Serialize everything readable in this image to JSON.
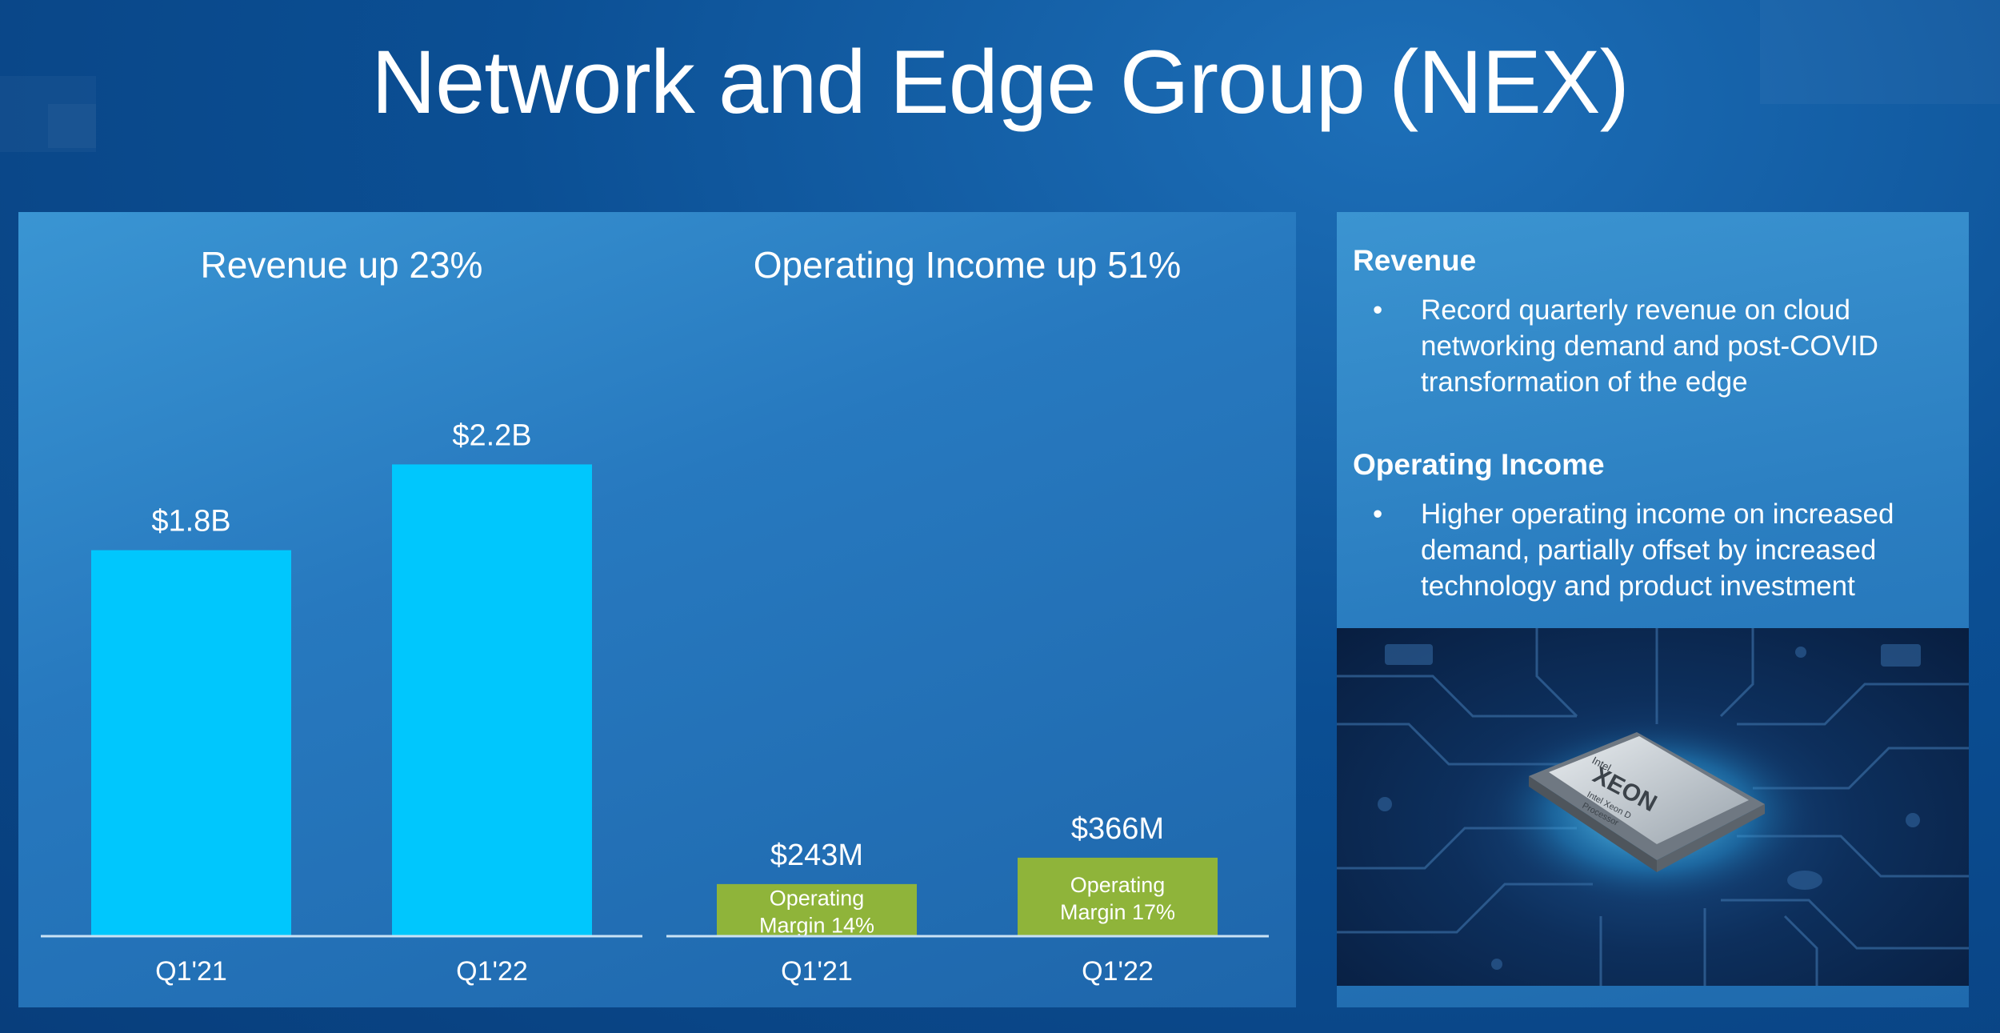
{
  "slide": {
    "title": "Network and Edge Group (NEX)"
  },
  "colors": {
    "revenue_bar": "#00c7fd",
    "income_bar": "#8fb43a",
    "axis_line": "#c9e2f5"
  },
  "chart_data": [
    {
      "type": "bar",
      "title": "Revenue up 23%",
      "categories": [
        "Q1'21",
        "Q1'22"
      ],
      "values": [
        1.8,
        2.2
      ],
      "value_labels": [
        "$1.8B",
        "$2.2B"
      ],
      "ylabel": "",
      "xlabel": "",
      "ylim": [
        0,
        2.5
      ],
      "grid": false
    },
    {
      "type": "bar",
      "title": "Operating Income up 51%",
      "categories": [
        "Q1'21",
        "Q1'22"
      ],
      "values": [
        243,
        366
      ],
      "value_labels": [
        "$243M",
        "$366M"
      ],
      "bar_annotations": [
        [
          "Operating",
          "Margin 14%"
        ],
        [
          "Operating",
          "Margin 17%"
        ]
      ],
      "ylabel": "",
      "xlabel": "",
      "ylim": [
        0,
        2500
      ],
      "grid": false
    }
  ],
  "side_panel": {
    "sections": [
      {
        "heading": "Revenue",
        "bullet": "•",
        "lines": [
          "Record quarterly revenue on cloud",
          "networking demand and post-COVID",
          "transformation of the edge"
        ]
      },
      {
        "heading": "Operating Income",
        "bullet": "•",
        "lines": [
          "Higher operating income on increased",
          "demand, partially offset by increased",
          "technology and product investment"
        ]
      }
    ],
    "image": {
      "icon": "xeon-processor-chip-image",
      "chip_text": [
        "Intel",
        "XEON",
        "Intel Xeon D",
        "Processor"
      ]
    }
  }
}
